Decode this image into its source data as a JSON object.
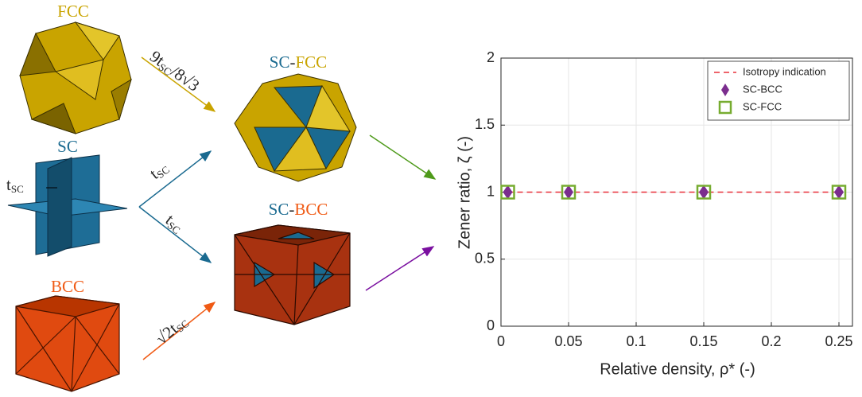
{
  "diagram": {
    "fcc": "FCC",
    "sc": "SC",
    "bcc": "BCC",
    "sc_fcc": [
      "SC",
      "-",
      "FCC"
    ],
    "sc_bcc": [
      "SC",
      "-",
      "BCC"
    ],
    "thickness": [
      "t",
      "SC"
    ],
    "arrow_fcc": [
      "9t",
      "SC",
      "/8√3"
    ],
    "arrow_sc_up": [
      "t",
      "SC"
    ],
    "arrow_sc_down": [
      "t",
      "SC"
    ],
    "arrow_bcc": [
      "√2t",
      "SC"
    ]
  },
  "chart_data": {
    "type": "line",
    "xlabel": "Relative density, ρ* (-)",
    "ylabel": "Zener ratio, ζ (-)",
    "x": [
      0.005,
      0.05,
      0.15,
      0.25
    ],
    "series": [
      {
        "name": "Isotropy indication",
        "color": "#e8303a",
        "style": "dashed",
        "values": [
          1,
          1,
          1,
          1
        ]
      },
      {
        "name": "SC-BCC",
        "color": "#7b2d8e",
        "marker": "diamond",
        "values": [
          1,
          1,
          1,
          1
        ]
      },
      {
        "name": "SC-FCC",
        "color": "#77ac30",
        "marker": "square",
        "values": [
          1,
          1,
          1,
          1
        ]
      }
    ],
    "xlim": [
      0,
      0.26
    ],
    "ylim": [
      0,
      2
    ],
    "xticks": [
      0,
      0.05,
      0.1,
      0.15,
      0.2,
      0.25
    ],
    "yticks": [
      0,
      0.5,
      1,
      1.5,
      2
    ],
    "grid": true,
    "legend": "top-right"
  }
}
